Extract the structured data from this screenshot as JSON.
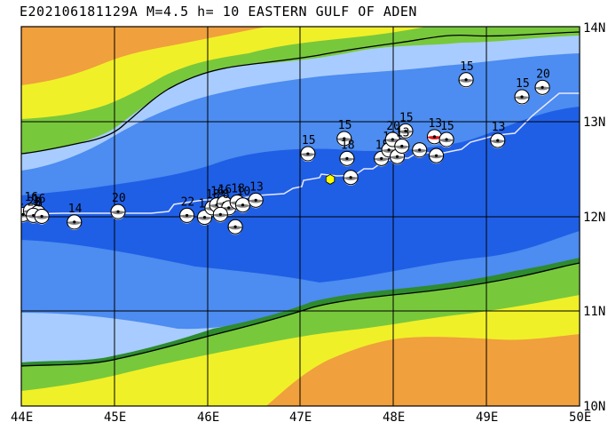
{
  "title": "E202106181129A M=4.5 h= 10 EASTERN GULF OF ADEN",
  "lon_labels": [
    "44E",
    "45E",
    "46E",
    "47E",
    "48E",
    "49E",
    "50E"
  ],
  "lat_labels": [
    "14N",
    "13N",
    "12N",
    "11N",
    "10N"
  ],
  "extent": {
    "lon_min": 44,
    "lon_max": 50,
    "lat_min": 10,
    "lat_max": 14
  },
  "colors": {
    "deep_water": "#1f5fe6",
    "mid_water": "#4d8cf0",
    "shallow_water": "#a8ccff",
    "lowland": "#2e8b2e",
    "green": "#78c83c",
    "yellow": "#f0f028",
    "orange": "#f0a03c",
    "event_marker": "#ffff00",
    "main_event_fill": "#e01818"
  },
  "event": {
    "lon": 47.32,
    "lat": 12.39,
    "label": ""
  },
  "mechanisms": [
    {
      "lon": 44.02,
      "lat": 12.02,
      "depth": "1"
    },
    {
      "lon": 44.1,
      "lat": 12.06,
      "depth": "16"
    },
    {
      "lon": 44.18,
      "lat": 12.04,
      "depth": "16"
    },
    {
      "lon": 44.13,
      "lat": 12.01,
      "depth": "28"
    },
    {
      "lon": 44.22,
      "lat": 12.0,
      "depth": "8"
    },
    {
      "lon": 44.57,
      "lat": 11.94,
      "depth": "14"
    },
    {
      "lon": 45.04,
      "lat": 12.05,
      "depth": "20"
    },
    {
      "lon": 45.78,
      "lat": 12.01,
      "depth": "22"
    },
    {
      "lon": 45.97,
      "lat": 11.99,
      "depth": "1"
    },
    {
      "lon": 46.05,
      "lat": 12.09,
      "depth": "18"
    },
    {
      "lon": 46.1,
      "lat": 12.12,
      "depth": "16"
    },
    {
      "lon": 46.18,
      "lat": 12.14,
      "depth": "16"
    },
    {
      "lon": 46.23,
      "lat": 12.09,
      "depth": "8"
    },
    {
      "lon": 46.32,
      "lat": 12.15,
      "depth": "18"
    },
    {
      "lon": 46.38,
      "lat": 12.12,
      "depth": "10"
    },
    {
      "lon": 46.14,
      "lat": 12.02,
      "depth": ""
    },
    {
      "lon": 46.3,
      "lat": 11.89,
      "depth": ""
    },
    {
      "lon": 46.52,
      "lat": 12.17,
      "depth": "13"
    },
    {
      "lon": 47.08,
      "lat": 12.66,
      "depth": "15"
    },
    {
      "lon": 47.47,
      "lat": 12.82,
      "depth": "15"
    },
    {
      "lon": 47.5,
      "lat": 12.61,
      "depth": "18"
    },
    {
      "lon": 47.54,
      "lat": 12.41,
      "depth": ""
    },
    {
      "lon": 47.87,
      "lat": 12.61,
      "depth": "15"
    },
    {
      "lon": 47.95,
      "lat": 12.7,
      "depth": "18"
    },
    {
      "lon": 47.99,
      "lat": 12.81,
      "depth": "20"
    },
    {
      "lon": 48.04,
      "lat": 12.63,
      "depth": ""
    },
    {
      "lon": 48.13,
      "lat": 12.9,
      "depth": "15"
    },
    {
      "lon": 48.09,
      "lat": 12.74,
      "depth": "13"
    },
    {
      "lon": 48.28,
      "lat": 12.7,
      "depth": ""
    },
    {
      "lon": 48.44,
      "lat": 12.84,
      "depth": "13",
      "main": true
    },
    {
      "lon": 48.57,
      "lat": 12.81,
      "depth": "15"
    },
    {
      "lon": 48.46,
      "lat": 12.64,
      "depth": ""
    },
    {
      "lon": 48.78,
      "lat": 13.44,
      "depth": "15"
    },
    {
      "lon": 49.12,
      "lat": 12.8,
      "depth": "13"
    },
    {
      "lon": 49.38,
      "lat": 13.26,
      "depth": "15"
    },
    {
      "lon": 49.6,
      "lat": 13.36,
      "depth": "20"
    }
  ]
}
